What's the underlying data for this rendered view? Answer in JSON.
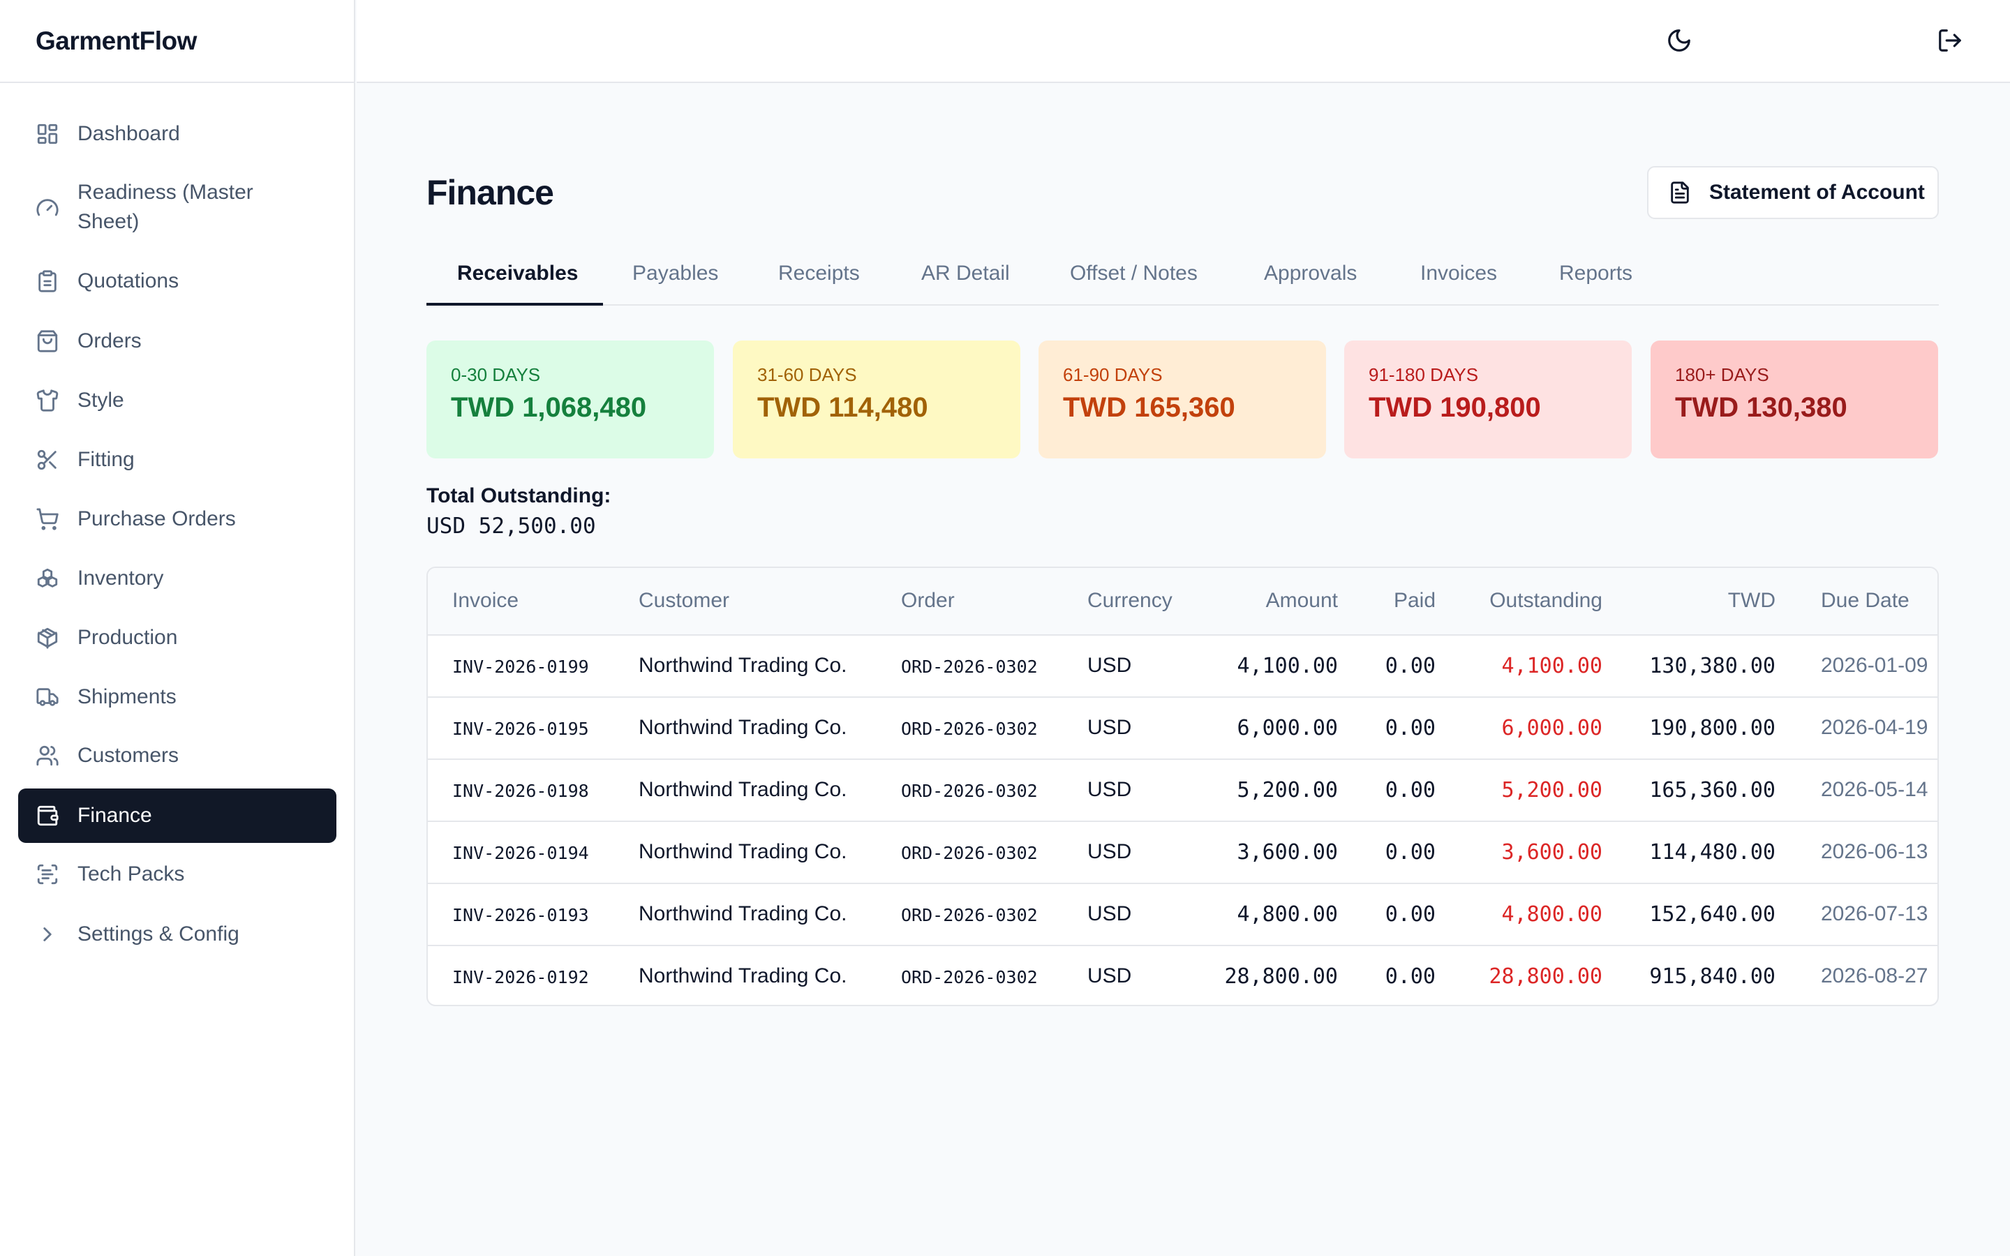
{
  "app": {
    "name": "GarmentFlow"
  },
  "sidebar": {
    "items": [
      {
        "label": "Dashboard",
        "icon": "dashboard-icon"
      },
      {
        "label": "Readiness (Master Sheet)",
        "icon": "gauge-icon"
      },
      {
        "label": "Quotations",
        "icon": "clipboard-icon"
      },
      {
        "label": "Orders",
        "icon": "shopping-bag-icon"
      },
      {
        "label": "Style",
        "icon": "shirt-icon"
      },
      {
        "label": "Fitting",
        "icon": "scissors-icon"
      },
      {
        "label": "Purchase Orders",
        "icon": "cart-icon"
      },
      {
        "label": "Inventory",
        "icon": "boxes-icon"
      },
      {
        "label": "Production",
        "icon": "package-icon"
      },
      {
        "label": "Shipments",
        "icon": "truck-icon"
      },
      {
        "label": "Customers",
        "icon": "users-icon"
      },
      {
        "label": "Finance",
        "icon": "wallet-icon",
        "active": true
      },
      {
        "label": "Tech Packs",
        "icon": "scan-text-icon"
      },
      {
        "label": "Settings & Config",
        "icon": "chevron-right-icon"
      }
    ],
    "readiness_line1": "Readiness (Master",
    "readiness_line2": "Sheet)"
  },
  "topbar": {
    "theme_icon": "moon-icon",
    "logout_icon": "logout-icon"
  },
  "page": {
    "title": "Finance",
    "statement_button": "Statement of Account"
  },
  "tabs": [
    "Receivables",
    "Payables",
    "Receipts",
    "AR Detail",
    "Offset / Notes",
    "Approvals",
    "Invoices",
    "Reports"
  ],
  "aging": [
    {
      "label": "0-30 DAYS",
      "value": "TWD 1,068,480",
      "bg": "#dcfce7",
      "fg": "#15803d"
    },
    {
      "label": "31-60 DAYS",
      "value": "TWD 114,480",
      "bg": "#fef9c3",
      "fg": "#a16207"
    },
    {
      "label": "61-90 DAYS",
      "value": "TWD 165,360",
      "bg": "#ffedd5",
      "fg": "#c2410c"
    },
    {
      "label": "91-180 DAYS",
      "value": "TWD 190,800",
      "bg": "#fee2e2",
      "fg": "#b91c1c"
    },
    {
      "label": "180+ DAYS",
      "value": "TWD 130,380",
      "bg": "#fecaca",
      "fg": "#991b1b"
    }
  ],
  "total": {
    "label": "Total Outstanding:",
    "value": "USD 52,500.00"
  },
  "table": {
    "headers": {
      "invoice": "Invoice",
      "customer": "Customer",
      "order": "Order",
      "currency": "Currency",
      "amount": "Amount",
      "paid": "Paid",
      "outstanding": "Outstanding",
      "twd": "TWD",
      "due": "Due Date"
    },
    "rows": [
      {
        "invoice": "INV-2026-0199",
        "customer": "Northwind Trading Co.",
        "order": "ORD-2026-0302",
        "currency": "USD",
        "amount": "4,100.00",
        "paid": "0.00",
        "outstanding": "4,100.00",
        "twd": "130,380.00",
        "due": "2026-01-09"
      },
      {
        "invoice": "INV-2026-0195",
        "customer": "Northwind Trading Co.",
        "order": "ORD-2026-0302",
        "currency": "USD",
        "amount": "6,000.00",
        "paid": "0.00",
        "outstanding": "6,000.00",
        "twd": "190,800.00",
        "due": "2026-04-19"
      },
      {
        "invoice": "INV-2026-0198",
        "customer": "Northwind Trading Co.",
        "order": "ORD-2026-0302",
        "currency": "USD",
        "amount": "5,200.00",
        "paid": "0.00",
        "outstanding": "5,200.00",
        "twd": "165,360.00",
        "due": "2026-05-14"
      },
      {
        "invoice": "INV-2026-0194",
        "customer": "Northwind Trading Co.",
        "order": "ORD-2026-0302",
        "currency": "USD",
        "amount": "3,600.00",
        "paid": "0.00",
        "outstanding": "3,600.00",
        "twd": "114,480.00",
        "due": "2026-06-13"
      },
      {
        "invoice": "INV-2026-0193",
        "customer": "Northwind Trading Co.",
        "order": "ORD-2026-0302",
        "currency": "USD",
        "amount": "4,800.00",
        "paid": "0.00",
        "outstanding": "4,800.00",
        "twd": "152,640.00",
        "due": "2026-07-13"
      },
      {
        "invoice": "INV-2026-0192",
        "customer": "Northwind Trading Co.",
        "order": "ORD-2026-0302",
        "currency": "USD",
        "amount": "28,800.00",
        "paid": "0.00",
        "outstanding": "28,800.00",
        "twd": "915,840.00",
        "due": "2026-08-27"
      }
    ]
  }
}
